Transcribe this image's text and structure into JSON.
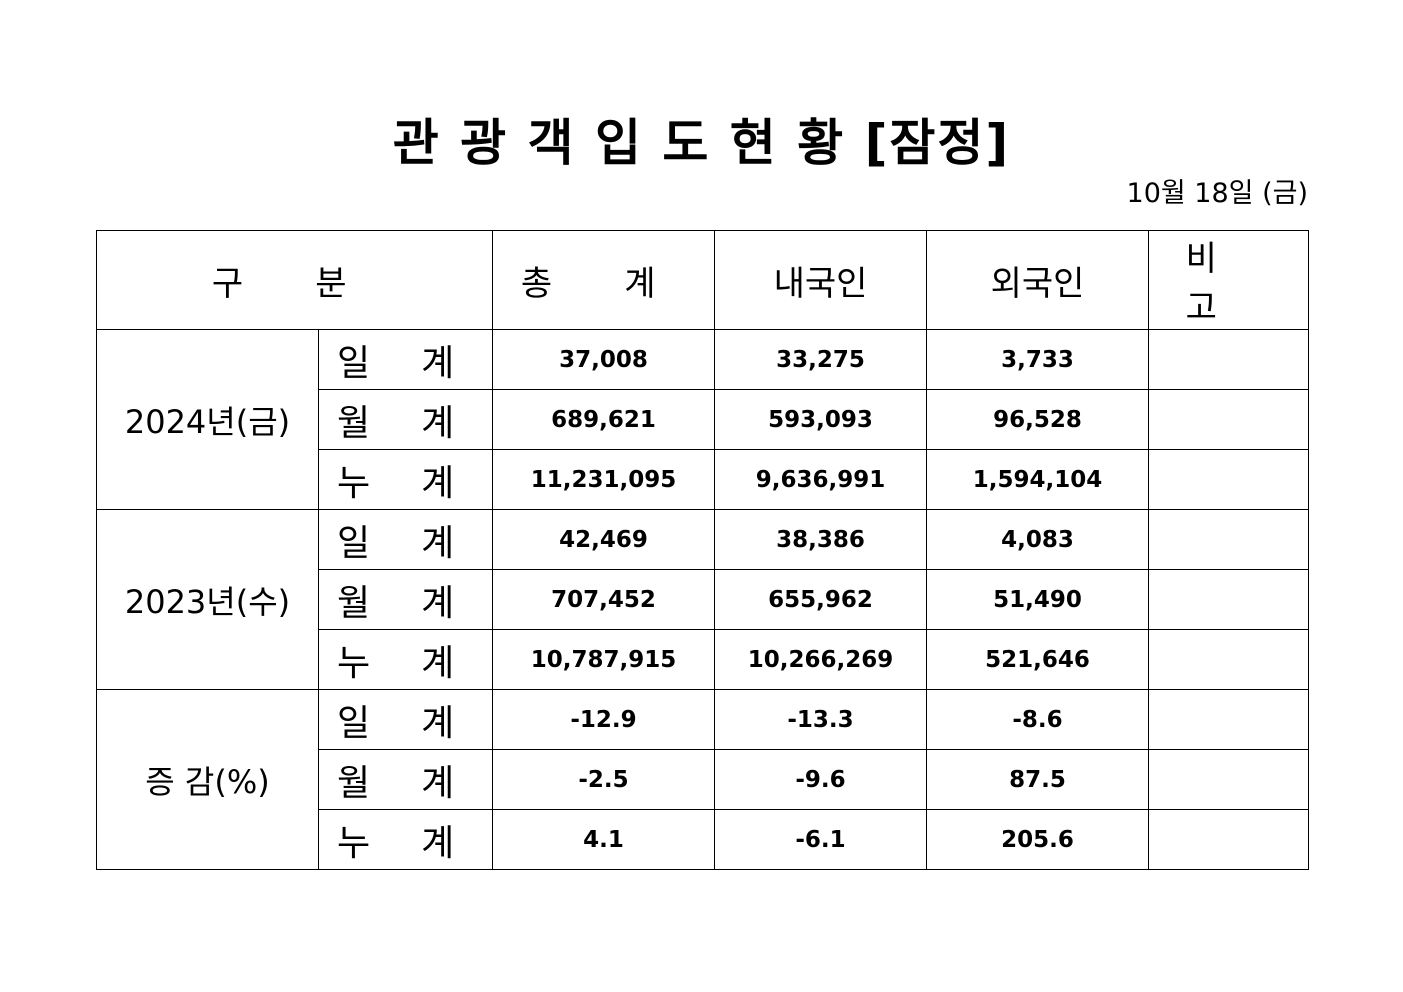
{
  "title": "관 광 객 입 도 현 황 [잠정]",
  "date": "10월 18일 (금)",
  "table": {
    "headers": {
      "category": "구 분",
      "total": "총 계",
      "domestic": "내국인",
      "foreign": "외국인",
      "remarks": "비 고"
    },
    "groups": [
      {
        "label": "2024년(금)",
        "rows": [
          {
            "sub": "일 계",
            "total": "37,008",
            "domestic": "33,275",
            "foreign": "3,733",
            "remarks": ""
          },
          {
            "sub": "월 계",
            "total": "689,621",
            "domestic": "593,093",
            "foreign": "96,528",
            "remarks": ""
          },
          {
            "sub": "누 계",
            "total": "11,231,095",
            "domestic": "9,636,991",
            "foreign": "1,594,104",
            "remarks": ""
          }
        ]
      },
      {
        "label": "2023년(수)",
        "rows": [
          {
            "sub": "일 계",
            "total": "42,469",
            "domestic": "38,386",
            "foreign": "4,083",
            "remarks": ""
          },
          {
            "sub": "월 계",
            "total": "707,452",
            "domestic": "655,962",
            "foreign": "51,490",
            "remarks": ""
          },
          {
            "sub": "누 계",
            "total": "10,787,915",
            "domestic": "10,266,269",
            "foreign": "521,646",
            "remarks": ""
          }
        ]
      },
      {
        "label": "증 감(%)",
        "rows": [
          {
            "sub": "일 계",
            "total": "-12.9",
            "domestic": "-13.3",
            "foreign": "-8.6",
            "remarks": ""
          },
          {
            "sub": "월 계",
            "total": "-2.5",
            "domestic": "-9.6",
            "foreign": "87.5",
            "remarks": ""
          },
          {
            "sub": "누 계",
            "total": "4.1",
            "domestic": "-6.1",
            "foreign": "205.6",
            "remarks": ""
          }
        ]
      }
    ]
  }
}
